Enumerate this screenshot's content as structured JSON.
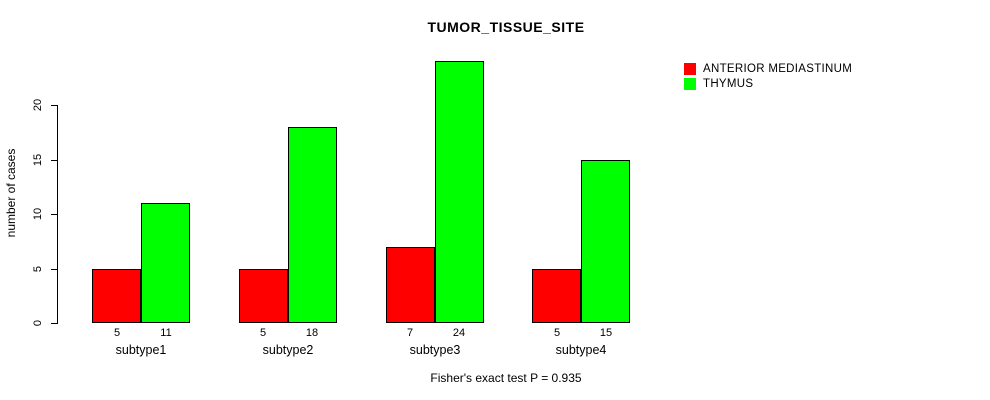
{
  "chart_data": {
    "type": "bar",
    "title": "TUMOR_TISSUE_SITE",
    "categories": [
      "subtype1",
      "subtype2",
      "subtype3",
      "subtype4"
    ],
    "series": [
      {
        "name": "ANTERIOR MEDIASTINUM",
        "color": "#FF0000",
        "values": [
          5,
          5,
          7,
          5
        ]
      },
      {
        "name": "THYMUS",
        "color": "#00FF00",
        "values": [
          11,
          18,
          24,
          15
        ]
      }
    ],
    "xlabel": "",
    "ylabel": "number of cases",
    "yticks": [
      0,
      5,
      10,
      15,
      20
    ],
    "ylim": [
      0,
      24
    ],
    "bar_value_labels": true,
    "grid": false,
    "legend_position": "top-right",
    "annotation": "Fisher's exact test P = 0.935"
  },
  "colors": {
    "background": "#FFFFFF",
    "axis": "#000000",
    "text": "#000000"
  }
}
